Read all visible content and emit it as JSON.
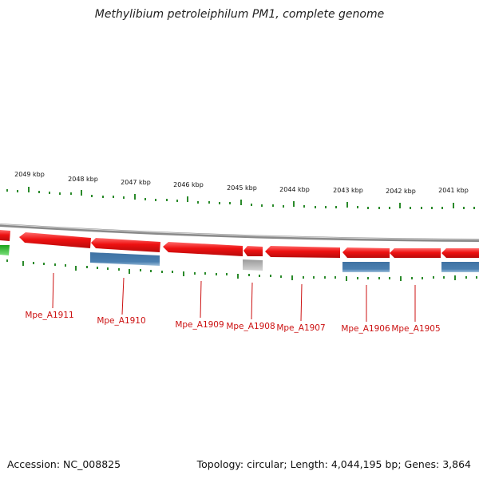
{
  "title": "Methylibium petroleiphilum PM1, complete genome",
  "footer": {
    "accession": "Accession: NC_008825",
    "topology": "Topology: circular; Length: 4,044,195 bp; Genes: 3,864"
  },
  "colors": {
    "forward_gene": "#ee1111",
    "reverse_gene": "#4a7fb0",
    "other_feature": "#b0b0b0",
    "rna_feature": "#22bb22",
    "ticks": "#2a8a2a",
    "backbone": "#8a8a8a",
    "gene_label": "#cc1111"
  },
  "scale_labels": [
    "2049 kbp",
    "2048 kbp",
    "2047 kbp",
    "2046 kbp",
    "2045 kbp",
    "2044 kbp",
    "2043 kbp",
    "2042 kbp",
    "2041 kbp"
  ],
  "gene_labels": [
    "Mpe_A1911",
    "Mpe_A1910",
    "Mpe_A1909",
    "Mpe_A1908",
    "Mpe_A1907",
    "Mpe_A1906",
    "Mpe_A1905"
  ]
}
